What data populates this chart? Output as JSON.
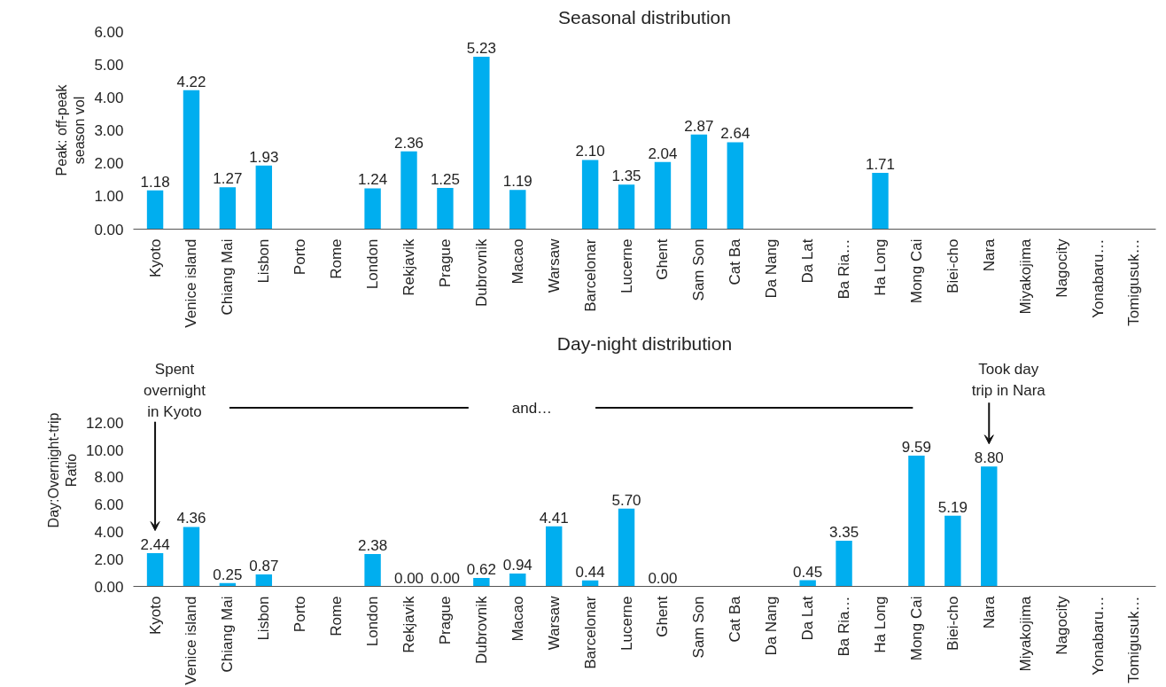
{
  "chart_data": [
    {
      "type": "bar",
      "title": "Seasonal distribution",
      "ylabel": "Peak: off-peak\nseason vol",
      "color": "#00aeef",
      "categories": [
        "Kyoto",
        "Venice island",
        "Chiang Mai",
        "Lisbon",
        "Porto",
        "Rome",
        "London",
        "Rekjavik",
        "Prague",
        "Dubrovnik",
        "Macao",
        "Warsaw",
        "Barcelonar",
        "Lucerne",
        "Ghent",
        "Sam Son",
        "Cat Ba",
        "Da Nang",
        "Da Lat",
        "Ba Ria…",
        "Ha Long",
        "Mong Cai",
        "Biei-cho",
        "Nara",
        "Miyakojima",
        "Nagocity",
        "Yonabaru…",
        "Tomigusuk…"
      ],
      "values": [
        1.18,
        4.22,
        1.27,
        1.93,
        null,
        null,
        1.24,
        2.36,
        1.25,
        5.23,
        1.19,
        null,
        2.1,
        1.35,
        2.04,
        2.87,
        2.64,
        null,
        null,
        null,
        1.71,
        null,
        null,
        null,
        null,
        null,
        null,
        null
      ],
      "value_labels": [
        "1.18",
        "4.22",
        "1.27",
        "1.93",
        null,
        null,
        "1.24",
        "2.36",
        "1.25",
        "5.23",
        "1.19",
        null,
        "2.10",
        "1.35",
        "2.04",
        "2.87",
        "2.64",
        null,
        null,
        null,
        "1.71",
        null,
        null,
        null,
        null,
        null,
        null,
        null
      ],
      "ylim": [
        0,
        6
      ],
      "yticks": [
        {
          "value": 0,
          "label": "0.00"
        },
        {
          "value": 1,
          "label": "1.00"
        },
        {
          "value": 2,
          "label": "2.00"
        },
        {
          "value": 3,
          "label": "3.00"
        },
        {
          "value": 4,
          "label": "4.00"
        },
        {
          "value": 5,
          "label": "5.00"
        },
        {
          "value": 6,
          "label": "6.00"
        }
      ]
    },
    {
      "type": "bar",
      "title": "Day-night distribution",
      "ylabel": "Day:Overnight-trip\nRatio",
      "color": "#00aeef",
      "categories": [
        "Kyoto",
        "Venice island",
        "Chiang Mai",
        "Lisbon",
        "Porto",
        "Rome",
        "London",
        "Rekjavik",
        "Prague",
        "Dubrovnik",
        "Macao",
        "Warsaw",
        "Barcelonar",
        "Lucerne",
        "Ghent",
        "Sam Son",
        "Cat Ba",
        "Da Nang",
        "Da Lat",
        "Ba Ria…",
        "Ha Long",
        "Mong Cai",
        "Biei-cho",
        "Nara",
        "Miyakojima",
        "Nagocity",
        "Yonabaru…",
        "Tomigusuk…"
      ],
      "values": [
        2.44,
        4.36,
        0.25,
        0.87,
        null,
        null,
        2.38,
        0.0,
        0.0,
        0.62,
        0.94,
        4.41,
        0.44,
        5.7,
        0.0,
        null,
        null,
        null,
        0.45,
        3.35,
        null,
        9.59,
        5.19,
        8.8,
        null,
        null,
        null,
        null
      ],
      "value_labels": [
        "2.44",
        "4.36",
        "0.25",
        "0.87",
        null,
        null,
        "2.38",
        "0.00",
        "0.00",
        "0.62",
        "0.94",
        "4.41",
        "0.44",
        "5.70",
        "0.00",
        null,
        null,
        null,
        "0.45",
        "3.35",
        null,
        "9.59",
        "5.19",
        "8.80",
        null,
        null,
        null,
        null
      ],
      "ylim": [
        0,
        12
      ],
      "yticks": [
        {
          "value": 0,
          "label": "0.00"
        },
        {
          "value": 2,
          "label": "2.00"
        },
        {
          "value": 4,
          "label": "4.00"
        },
        {
          "value": 6,
          "label": "6.00"
        },
        {
          "value": 8,
          "label": "8.00"
        },
        {
          "value": 10,
          "label": "10.00"
        },
        {
          "value": 12,
          "label": "12.00"
        }
      ],
      "annotations": [
        "Spent\novernight\nin Kyoto",
        "and…",
        "Took day\ntrip in Nara"
      ]
    }
  ]
}
